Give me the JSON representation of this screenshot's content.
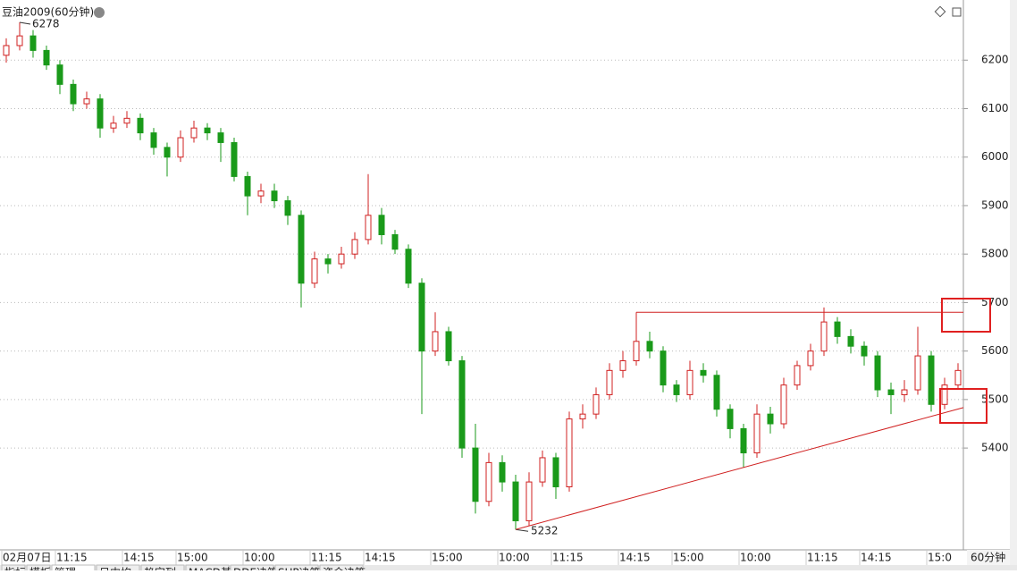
{
  "chart_data": {
    "type": "candlestick",
    "title": "豆油2009(60分钟)",
    "period": "60分钟",
    "categories": [
      "02月07日",
      null,
      null,
      null,
      "11:15",
      null,
      null,
      null,
      null,
      "14:15",
      null,
      null,
      null,
      "15:00",
      null,
      null,
      null,
      null,
      "10:00",
      null,
      null,
      null,
      null,
      "11:15",
      null,
      null,
      null,
      "14:15",
      null,
      null,
      null,
      null,
      "15:00",
      null,
      null,
      null,
      null,
      "10:00",
      null,
      null,
      null,
      "11:15",
      null,
      null,
      null,
      null,
      "14:15",
      null,
      null,
      null,
      "15:00",
      null,
      null,
      null,
      null,
      "10:00",
      null,
      null,
      null,
      null,
      "11:15",
      null,
      null,
      null,
      "14:15",
      null,
      null,
      null,
      null,
      "15:0",
      null,
      null
    ],
    "open": [
      6210,
      6230,
      6250,
      6220,
      6190,
      6150,
      6110,
      6120,
      6060,
      6070,
      6080,
      6050,
      6020,
      6000,
      6040,
      6060,
      6050,
      6030,
      5960,
      5920,
      5930,
      5910,
      5880,
      5740,
      5790,
      5780,
      5800,
      5830,
      5880,
      5840,
      5810,
      5740,
      5600,
      5640,
      5580,
      5400,
      5290,
      5370,
      5330,
      5250,
      5330,
      5380,
      5320,
      5460,
      5470,
      5510,
      5560,
      5580,
      5620,
      5600,
      5530,
      5510,
      5560,
      5550,
      5480,
      5440,
      5390,
      5470,
      5450,
      5530,
      5570,
      5600,
      5660,
      5630,
      5610,
      5590,
      5520,
      5510,
      5520,
      5590,
      5490,
      5530
    ],
    "high": [
      6245,
      6278,
      6262,
      6230,
      6200,
      6160,
      6135,
      6130,
      6085,
      6095,
      6090,
      6060,
      6030,
      6055,
      6075,
      6070,
      6060,
      6040,
      5970,
      5945,
      5945,
      5920,
      5890,
      5805,
      5800,
      5815,
      5845,
      5965,
      5895,
      5850,
      5820,
      5750,
      5680,
      5650,
      5590,
      5450,
      5390,
      5385,
      5345,
      5350,
      5395,
      5390,
      5475,
      5490,
      5525,
      5575,
      5600,
      5680,
      5640,
      5610,
      5540,
      5580,
      5575,
      5560,
      5490,
      5450,
      5490,
      5485,
      5545,
      5580,
      5615,
      5690,
      5670,
      5645,
      5620,
      5600,
      5535,
      5540,
      5650,
      5600,
      5545,
      5575
    ],
    "low": [
      6195,
      6220,
      6205,
      6180,
      6130,
      6095,
      6100,
      6040,
      6050,
      6060,
      6035,
      6005,
      5960,
      5990,
      6030,
      6035,
      5990,
      5950,
      5880,
      5905,
      5895,
      5860,
      5690,
      5730,
      5760,
      5770,
      5790,
      5820,
      5820,
      5800,
      5730,
      5470,
      5590,
      5570,
      5380,
      5265,
      5280,
      5310,
      5232,
      5240,
      5320,
      5295,
      5310,
      5440,
      5460,
      5500,
      5545,
      5570,
      5585,
      5515,
      5495,
      5500,
      5535,
      5465,
      5420,
      5360,
      5380,
      5430,
      5440,
      5520,
      5560,
      5590,
      5615,
      5595,
      5570,
      5505,
      5470,
      5495,
      5510,
      5475,
      5480,
      5520
    ],
    "close": [
      6230,
      6250,
      6220,
      6190,
      6150,
      6110,
      6120,
      6060,
      6070,
      6080,
      6050,
      6020,
      6000,
      6040,
      6060,
      6050,
      6030,
      5960,
      5920,
      5930,
      5910,
      5880,
      5740,
      5790,
      5780,
      5800,
      5830,
      5880,
      5840,
      5810,
      5740,
      5600,
      5640,
      5580,
      5400,
      5290,
      5370,
      5330,
      5250,
      5330,
      5380,
      5320,
      5460,
      5470,
      5510,
      5560,
      5580,
      5620,
      5600,
      5530,
      5510,
      5560,
      5550,
      5480,
      5440,
      5390,
      5470,
      5450,
      5530,
      5570,
      5600,
      5660,
      5630,
      5610,
      5590,
      5520,
      5510,
      5520,
      5590,
      5490,
      5530,
      5560
    ],
    "up_color": "#d02020",
    "down_color": "#1a9a1a",
    "ylim": [
      5190,
      6324
    ],
    "yticks": [
      5400,
      5500,
      5600,
      5700,
      5800,
      5900,
      6000,
      6100,
      6200
    ],
    "grid": true,
    "tabs": [
      "指标",
      "模板",
      "管理",
      "日内均",
      "趋定列",
      "MACD基本",
      "DDE决策",
      "SUP决策",
      "资金决策"
    ]
  }
}
